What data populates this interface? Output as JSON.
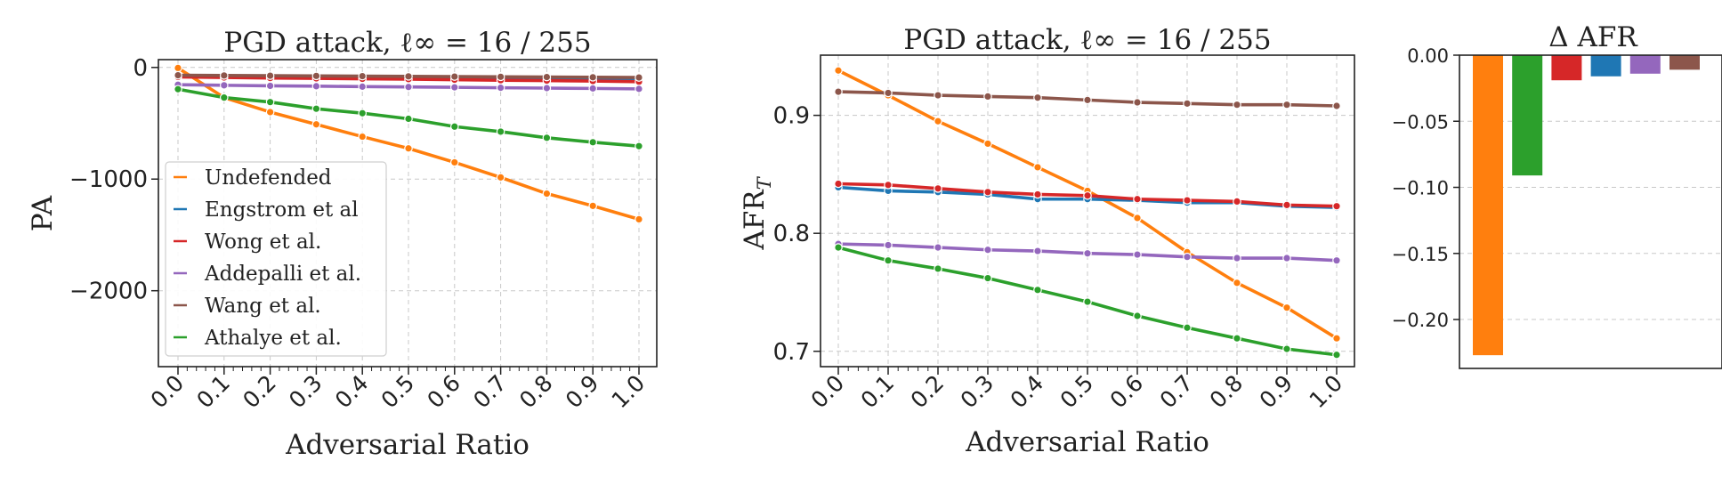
{
  "chart_data": [
    {
      "type": "line",
      "title": "PGD attack, ℓ∞ = 16 / 255",
      "xlabel": "Adversarial Ratio",
      "ylabel": "PA",
      "x": [
        0.0,
        0.1,
        0.2,
        0.3,
        0.4,
        0.5,
        0.6,
        0.7,
        0.8,
        0.9,
        1.0
      ],
      "x_tick_labels": [
        "0.0",
        "0.1",
        "0.2",
        "0.3",
        "0.4",
        "0.5",
        "0.6",
        "0.7",
        "0.8",
        "0.9",
        "1.0"
      ],
      "y_ticks": [
        0,
        -1000,
        -2000
      ],
      "y_tick_labels": [
        "0",
        "−1000",
        "−2000"
      ],
      "ylim": [
        -2680,
        70
      ],
      "grid": true,
      "legend": "lower-left",
      "series": [
        {
          "name": "Undefended",
          "color": "#ff7f0e",
          "values": [
            -5,
            -270,
            -400,
            -510,
            -620,
            -725,
            -850,
            -985,
            -1130,
            -1240,
            -1360
          ]
        },
        {
          "name": "Engstrom et al",
          "color": "#1f77b4",
          "values": [
            -80,
            -85,
            -90,
            -92,
            -95,
            -97,
            -100,
            -103,
            -105,
            -108,
            -112
          ]
        },
        {
          "name": "Wong et al.",
          "color": "#d62728",
          "values": [
            -85,
            -90,
            -95,
            -98,
            -102,
            -105,
            -110,
            -115,
            -118,
            -122,
            -128
          ]
        },
        {
          "name": "Addepalli et al.",
          "color": "#9467bd",
          "values": [
            -155,
            -160,
            -165,
            -168,
            -172,
            -175,
            -178,
            -182,
            -185,
            -188,
            -192
          ]
        },
        {
          "name": "Wang et al.",
          "color": "#8c564b",
          "values": [
            -70,
            -72,
            -74,
            -76,
            -78,
            -80,
            -82,
            -84,
            -86,
            -88,
            -90
          ]
        },
        {
          "name": "Athalye et al.",
          "color": "#2ca02c",
          "values": [
            -195,
            -270,
            -310,
            -370,
            -410,
            -460,
            -530,
            -575,
            -630,
            -670,
            -705
          ]
        }
      ]
    },
    {
      "type": "line",
      "title": "PGD attack, ℓ∞ = 16 / 255",
      "xlabel": "Adversarial Ratio",
      "ylabel": "AFR",
      "ylabel_sub": "T",
      "x": [
        0.0,
        0.1,
        0.2,
        0.3,
        0.4,
        0.5,
        0.6,
        0.7,
        0.8,
        0.9,
        1.0
      ],
      "x_tick_labels": [
        "0.0",
        "0.1",
        "0.2",
        "0.3",
        "0.4",
        "0.5",
        "0.6",
        "0.7",
        "0.8",
        "0.9",
        "1.0"
      ],
      "y_ticks": [
        0.7,
        0.8,
        0.9
      ],
      "y_tick_labels": [
        "0.7",
        "0.8",
        "0.9"
      ],
      "ylim": [
        0.687,
        0.951
      ],
      "grid": true,
      "series": [
        {
          "color": "#ff7f0e",
          "values": [
            0.938,
            0.917,
            0.895,
            0.876,
            0.856,
            0.836,
            0.813,
            0.784,
            0.758,
            0.737,
            0.711
          ]
        },
        {
          "color": "#1f77b4",
          "values": [
            0.839,
            0.836,
            0.835,
            0.833,
            0.829,
            0.829,
            0.828,
            0.826,
            0.826,
            0.823,
            0.822
          ]
        },
        {
          "color": "#d62728",
          "values": [
            0.842,
            0.841,
            0.838,
            0.835,
            0.833,
            0.832,
            0.829,
            0.828,
            0.827,
            0.824,
            0.823
          ]
        },
        {
          "color": "#9467bd",
          "values": [
            0.791,
            0.79,
            0.788,
            0.786,
            0.785,
            0.783,
            0.782,
            0.78,
            0.779,
            0.779,
            0.777
          ]
        },
        {
          "color": "#8c564b",
          "values": [
            0.92,
            0.919,
            0.917,
            0.916,
            0.915,
            0.913,
            0.911,
            0.91,
            0.909,
            0.909,
            0.908
          ]
        },
        {
          "color": "#2ca02c",
          "values": [
            0.788,
            0.777,
            0.77,
            0.762,
            0.752,
            0.742,
            0.73,
            0.72,
            0.711,
            0.702,
            0.697
          ]
        }
      ]
    },
    {
      "type": "bar",
      "title": "Δ AFR",
      "y_ticks": [
        0.0,
        -0.05,
        -0.1,
        -0.15,
        -0.2
      ],
      "y_tick_labels": [
        "0.00",
        "−0.05",
        "−0.10",
        "−0.15",
        "−0.20"
      ],
      "ylim": [
        -0.237,
        0.0
      ],
      "grid": true,
      "bars": [
        {
          "color": "#ff7f0e",
          "value": -0.227
        },
        {
          "color": "#2ca02c",
          "value": -0.091
        },
        {
          "color": "#d62728",
          "value": -0.019
        },
        {
          "color": "#1f77b4",
          "value": -0.016
        },
        {
          "color": "#9467bd",
          "value": -0.014
        },
        {
          "color": "#8c564b",
          "value": -0.011
        }
      ]
    }
  ]
}
